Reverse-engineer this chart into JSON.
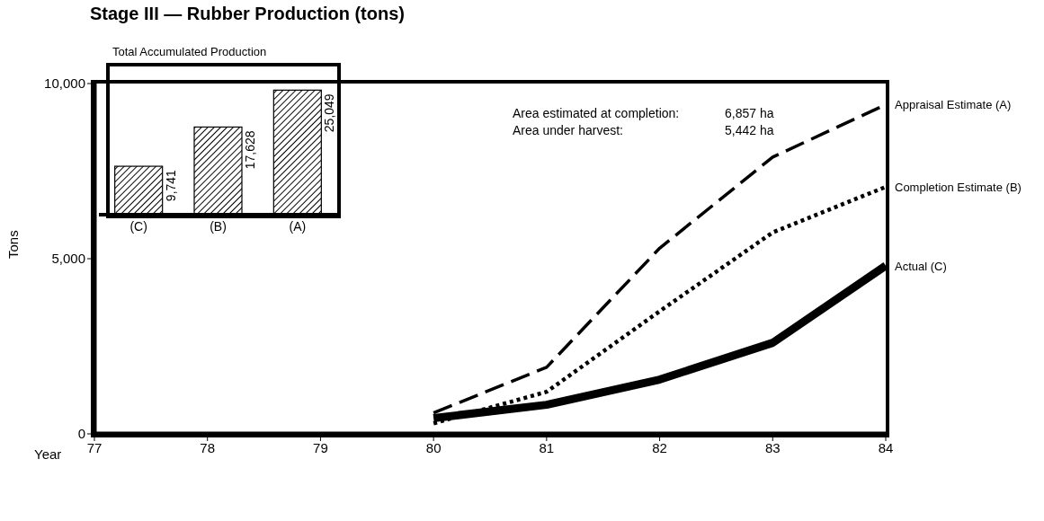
{
  "chart_data": [
    {
      "type": "line",
      "title": "Stage III — Rubber Production (tons)",
      "xlabel": "Year",
      "ylabel": "Tons",
      "x": [
        80,
        81,
        82,
        83,
        84
      ],
      "xlim": [
        77,
        84
      ],
      "xticks": [
        77,
        78,
        79,
        80,
        81,
        82,
        83,
        84
      ],
      "ylim": [
        0,
        10000
      ],
      "yticks": [
        0,
        {
          "value": 5000,
          "label": "5,000"
        },
        {
          "value": 10000,
          "label": "10,000"
        }
      ],
      "series": [
        {
          "name": "Appraisal Estimate (A)",
          "color": "#000000",
          "line_style": "dashed",
          "values": [
            600,
            1900,
            5300,
            7900,
            9400
          ]
        },
        {
          "name": "Completion Estimate (B)",
          "color": "#000000",
          "line_style": "dotted",
          "values": [
            300,
            1200,
            3500,
            5750,
            7050
          ]
        },
        {
          "name": "Actual (C)",
          "color": "#000000",
          "line_style": "solid",
          "values": [
            450,
            830,
            1550,
            2600,
            4800
          ]
        }
      ],
      "annotations": [
        "Area estimated at completion:",
        "6,857 ha",
        "Area under harvest:",
        "5,442 ha"
      ]
    },
    {
      "type": "bar",
      "title": "Total Accumulated Production",
      "categories": [
        "(C)",
        "(B)",
        "(A)"
      ],
      "values": [
        9741,
        17628,
        25049
      ],
      "color": "#000000",
      "value_labels": [
        "9,741",
        "17,628",
        "25,049"
      ]
    }
  ]
}
